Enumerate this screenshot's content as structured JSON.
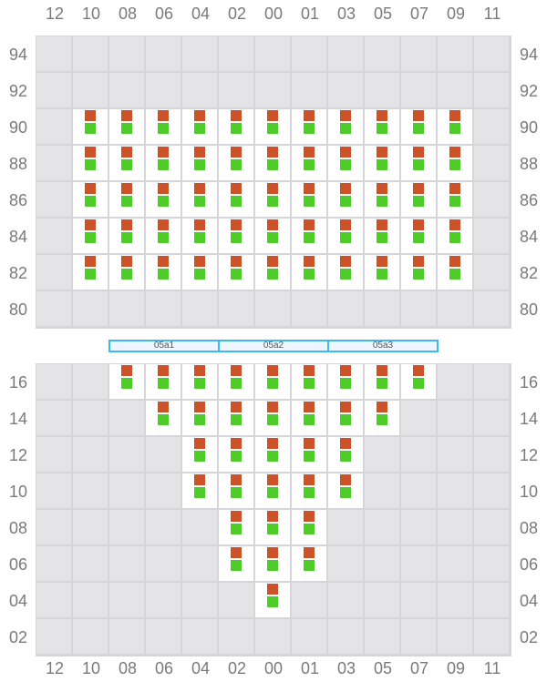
{
  "columns": [
    "12",
    "10",
    "08",
    "06",
    "04",
    "02",
    "00",
    "01",
    "03",
    "05",
    "07",
    "09",
    "11"
  ],
  "top_section": {
    "rows": [
      "94",
      "92",
      "90",
      "88",
      "86",
      "84",
      "82",
      "80"
    ],
    "available": {
      "90": [
        "10",
        "09"
      ],
      "88": [
        "10",
        "09"
      ],
      "86": [
        "10",
        "09"
      ],
      "84": [
        "10",
        "09"
      ],
      "82": [
        "10",
        "09"
      ]
    }
  },
  "zones": [
    "05a1",
    "05a2",
    "05a3"
  ],
  "bottom_section": {
    "rows": [
      "16",
      "14",
      "12",
      "10",
      "08",
      "06",
      "04",
      "02"
    ],
    "available": {
      "16": [
        "08",
        "07"
      ],
      "14": [
        "06",
        "05"
      ],
      "12": [
        "04",
        "03"
      ],
      "10": [
        "04",
        "03"
      ],
      "08": [
        "02",
        "01"
      ],
      "06": [
        "02",
        "01"
      ],
      "04": [
        "00",
        "00"
      ]
    }
  },
  "colors": {
    "top_marker": "#cc5229",
    "bottom_marker": "#4ecd29",
    "cell_empty": "#e4e4e7",
    "cell_available": "#ffffff",
    "zone_border": "#3cb9f0"
  }
}
